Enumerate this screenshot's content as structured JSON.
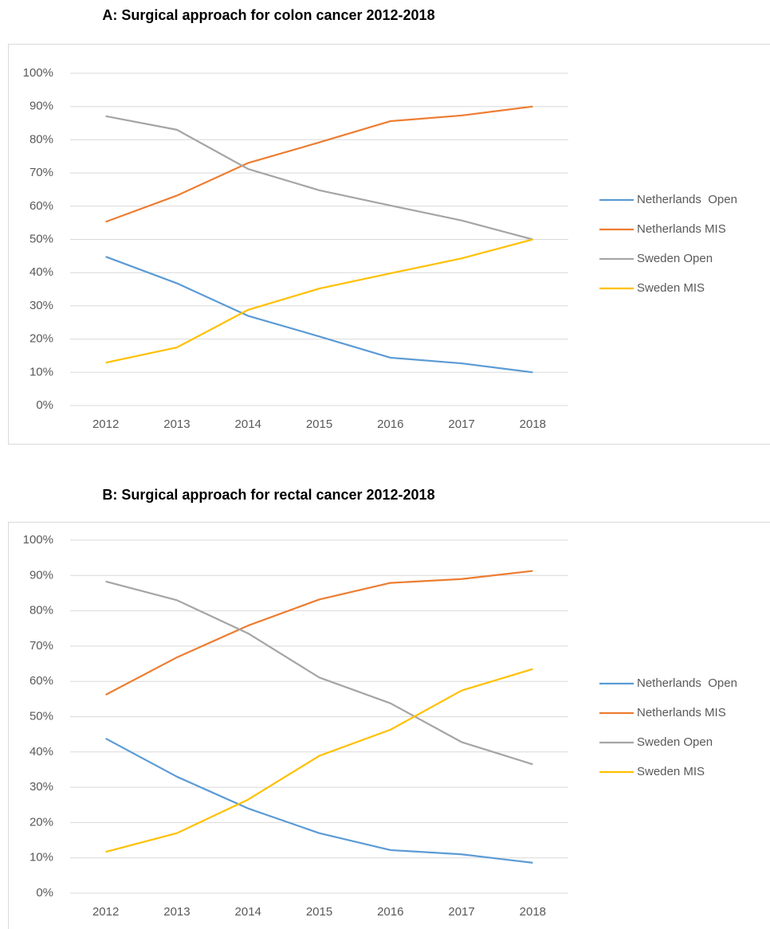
{
  "chart_data": [
    {
      "type": "line",
      "title": "A: Surgical approach for colon cancer 2012-2018",
      "categories": [
        "2012",
        "2013",
        "2014",
        "2015",
        "2016",
        "2017",
        "2018"
      ],
      "series": [
        {
          "name": "Netherlands  Open",
          "color": "#5b9bd5",
          "values": [
            44.8,
            36.8,
            27,
            20.8,
            14.4,
            12.7,
            10
          ]
        },
        {
          "name": "Netherlands MIS",
          "color": "#ed7d31",
          "values": [
            55.3,
            63.2,
            73,
            79.2,
            85.6,
            87.3,
            90
          ]
        },
        {
          "name": "Sweden Open",
          "color": "#a5a5a5",
          "values": [
            87.1,
            83,
            71.2,
            64.8,
            60.2,
            55.7,
            50
          ]
        },
        {
          "name": "Sweden MIS",
          "color": "#ffc000",
          "values": [
            12.9,
            17.5,
            28.8,
            35.2,
            39.8,
            44.3,
            50
          ]
        }
      ],
      "ylim": [
        0,
        100
      ],
      "yticks": [
        {
          "value": 0,
          "label": "0%"
        },
        {
          "value": 10,
          "label": "10%"
        },
        {
          "value": 20,
          "label": "20%"
        },
        {
          "value": 30,
          "label": "30%"
        },
        {
          "value": 40,
          "label": "40%"
        },
        {
          "value": 50,
          "label": "50%"
        },
        {
          "value": 60,
          "label": "60%"
        },
        {
          "value": 70,
          "label": "70%"
        },
        {
          "value": 80,
          "label": "80%"
        },
        {
          "value": 90,
          "label": "90%"
        },
        {
          "value": 100,
          "label": "100%"
        }
      ],
      "grid": true,
      "legend": "right"
    },
    {
      "type": "line",
      "title": "B: Surgical approach for rectal cancer 2012-2018",
      "categories": [
        "2012",
        "2013",
        "2014",
        "2015",
        "2016",
        "2017",
        "2018"
      ],
      "series": [
        {
          "name": "Netherlands  Open",
          "color": "#5b9bd5",
          "values": [
            43.8,
            33,
            24,
            17,
            12.2,
            11,
            8.6
          ]
        },
        {
          "name": "Netherlands MIS",
          "color": "#ed7d31",
          "values": [
            56.2,
            66.8,
            75.8,
            83.2,
            87.9,
            89,
            91.3
          ]
        },
        {
          "name": "Sweden Open",
          "color": "#a5a5a5",
          "values": [
            88.3,
            83,
            73.6,
            61.1,
            53.8,
            42.8,
            36.5
          ]
        },
        {
          "name": "Sweden MIS",
          "color": "#ffc000",
          "values": [
            11.7,
            17,
            26.5,
            38.9,
            46.3,
            57.4,
            63.5
          ]
        }
      ],
      "ylim": [
        0,
        100
      ],
      "yticks": [
        {
          "value": 0,
          "label": "0%"
        },
        {
          "value": 10,
          "label": "10%"
        },
        {
          "value": 20,
          "label": "20%"
        },
        {
          "value": 30,
          "label": "30%"
        },
        {
          "value": 40,
          "label": "40%"
        },
        {
          "value": 50,
          "label": "50%"
        },
        {
          "value": 60,
          "label": "60%"
        },
        {
          "value": 70,
          "label": "70%"
        },
        {
          "value": 80,
          "label": "80%"
        },
        {
          "value": 90,
          "label": "90%"
        },
        {
          "value": 100,
          "label": "100%"
        }
      ],
      "grid": true,
      "legend": "right"
    }
  ]
}
